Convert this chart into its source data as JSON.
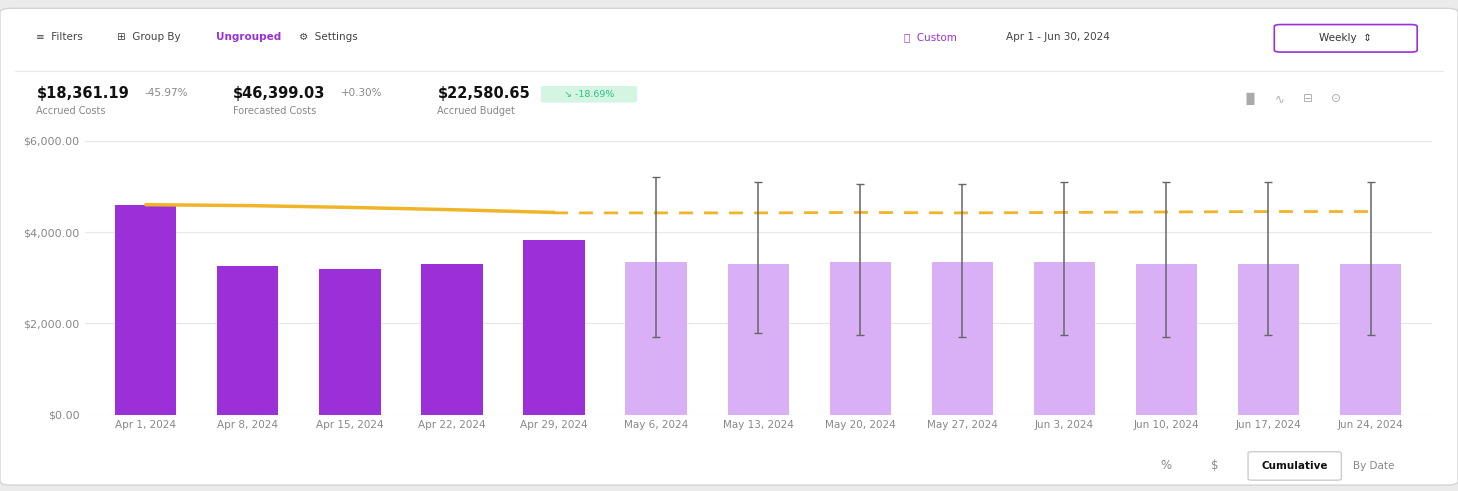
{
  "categories": [
    "Apr 1, 2024",
    "Apr 8, 2024",
    "Apr 15, 2024",
    "Apr 22, 2024",
    "Apr 29, 2024",
    "May 6, 2024",
    "May 13, 2024",
    "May 20, 2024",
    "May 27, 2024",
    "Jun 3, 2024",
    "Jun 10, 2024",
    "Jun 17, 2024",
    "Jun 24, 2024"
  ],
  "bar_values": [
    4600,
    3250,
    3200,
    3300,
    3820,
    3350,
    3300,
    3350,
    3350,
    3350,
    3300,
    3300,
    3300
  ],
  "bar_color_solid": "#9b30d9",
  "bar_color_light": "#d9aff5",
  "n_solid": 5,
  "budget_line_solid_x": [
    0,
    1,
    2,
    3,
    4
  ],
  "budget_line_solid_y": [
    4600,
    4580,
    4540,
    4490,
    4430
  ],
  "budget_line_dashed_x": [
    4,
    5,
    6,
    7,
    8,
    9,
    10,
    11,
    12
  ],
  "budget_line_dashed_y": [
    4420,
    4420,
    4420,
    4430,
    4420,
    4430,
    4440,
    4450,
    4450
  ],
  "budget_color": "#f0b429",
  "error_bar_indices": [
    5,
    6,
    7,
    8,
    9,
    10,
    11,
    12
  ],
  "error_bar_top": [
    5200,
    5100,
    5050,
    5050,
    5100,
    5100,
    5100,
    5100
  ],
  "error_bar_bottom": [
    1700,
    1800,
    1750,
    1700,
    1750,
    1700,
    1750,
    1750
  ],
  "ylim": [
    0,
    6500
  ],
  "yticks": [
    0,
    2000,
    4000,
    6000
  ],
  "ytick_labels": [
    "$0.00",
    "$2,000.00",
    "$4,000.00",
    "$6,000.00"
  ],
  "plot_bg_color": "#ffffff",
  "grid_color": "#e8e8e8",
  "tick_label_color": "#888888",
  "metric1_value": "$18,361.19",
  "metric1_change": "-45.97%",
  "metric1_label": "Accrued Costs",
  "metric2_value": "$46,399.03",
  "metric2_change": "+0.30%",
  "metric2_label": "Forecasted Costs",
  "metric3_value": "$22,580.65",
  "metric3_change": "-18.69%",
  "metric3_label": "Accrued Budget",
  "metric3_badge_bg": "#d4f5e2",
  "metric3_change_color": "#2ec27e",
  "header_date": "Apr 1 - Jun 30, 2024",
  "footer_items": [
    "%",
    "$",
    "Cumulative",
    "By Date"
  ],
  "outer_bg": "#ebebeb",
  "card_bg": "#ffffff",
  "card_edge": "#d4d4d4",
  "header_sep": "#e8e8e8",
  "purple_accent": "#9b30d9"
}
